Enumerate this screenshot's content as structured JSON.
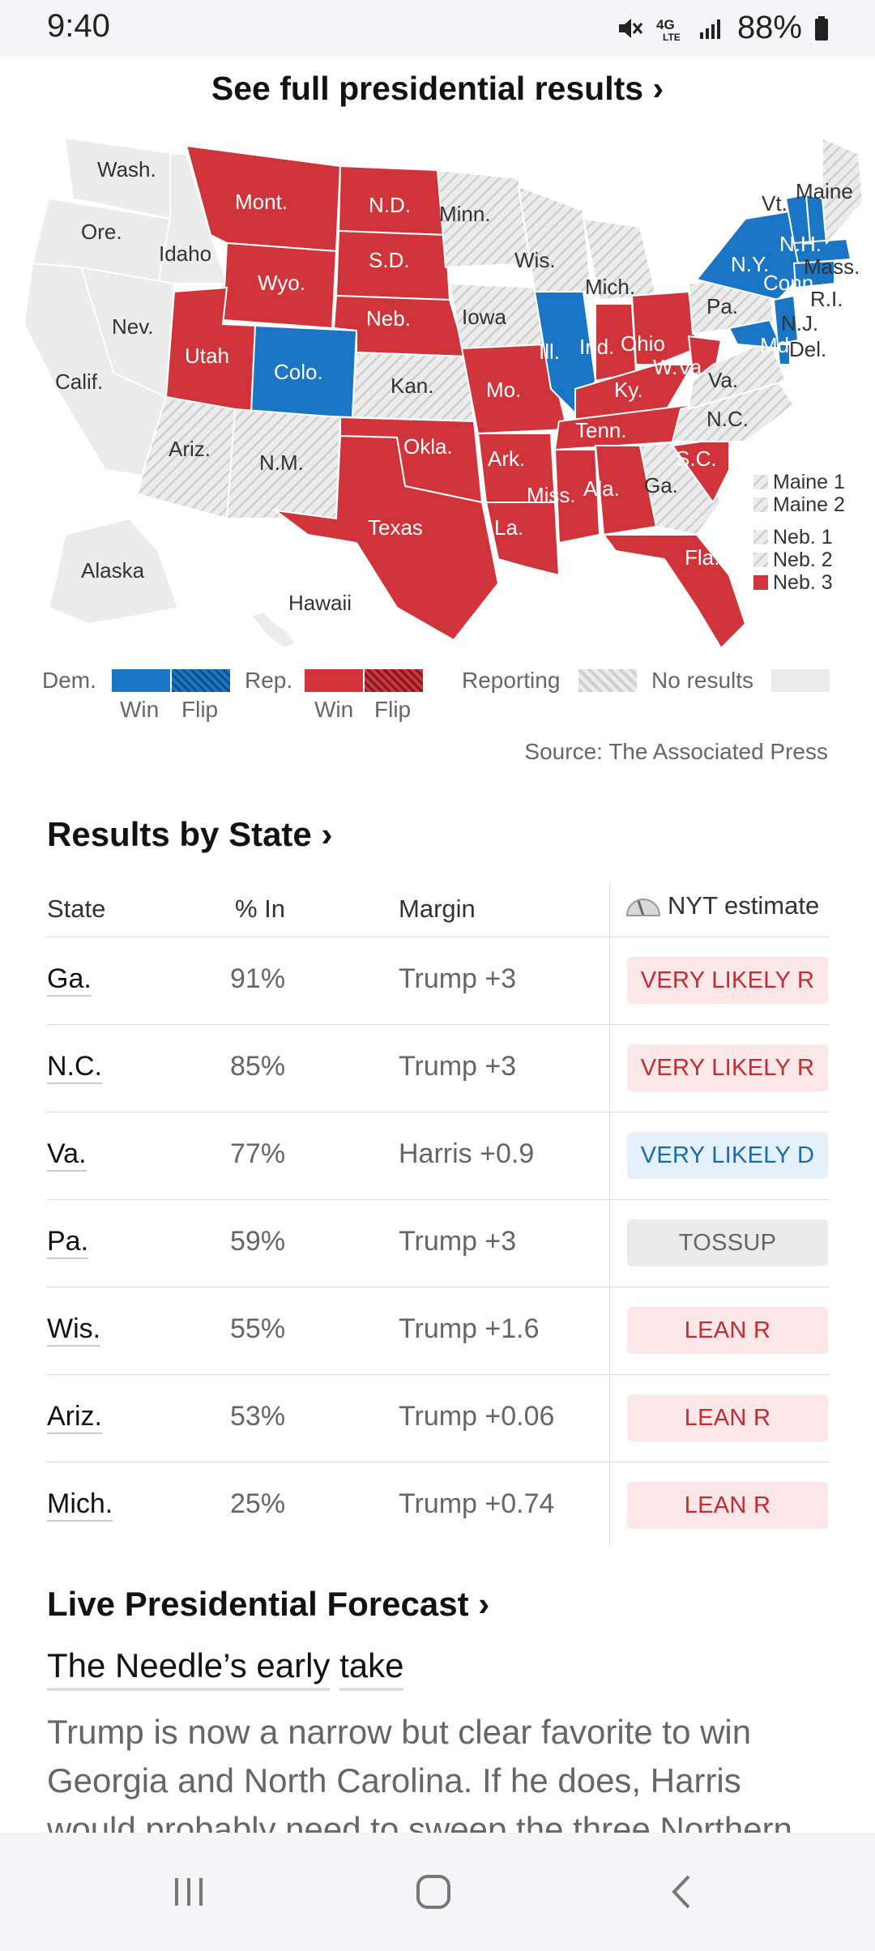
{
  "status": {
    "time": "9:40",
    "network": "4G LTE",
    "battery": "88%"
  },
  "map": {
    "header": "See full presidential results ›",
    "labels": {
      "wash": "Wash.",
      "ore": "Ore.",
      "idaho": "Idaho",
      "nev": "Nev.",
      "calif": "Calif.",
      "mont": "Mont.",
      "wyo": "Wyo.",
      "utah": "Utah",
      "colo": "Colo.",
      "ariz": "Ariz.",
      "nm": "N.M.",
      "nd": "N.D.",
      "sd": "S.D.",
      "neb": "Neb.",
      "kan": "Kan.",
      "okla": "Okla.",
      "texas": "Texas",
      "minn": "Minn.",
      "iowa": "Iowa",
      "mo": "Mo.",
      "ark": "Ark.",
      "la": "La.",
      "wis": "Wis.",
      "ill": "Ill.",
      "mich": "Mich.",
      "ind": "Ind.",
      "ohio": "Ohio",
      "ky": "Ky.",
      "tenn": "Tenn.",
      "miss": "Miss.",
      "ala": "Ala.",
      "ga": "Ga.",
      "fla": "Fla.",
      "sc": "S.C.",
      "nc": "N.C.",
      "va": "Va.",
      "wva": "W.Va.",
      "pa": "Pa.",
      "ny": "N.Y.",
      "vt": "Vt.",
      "maine": "Maine",
      "nh": "N.H.",
      "mass": "Mass.",
      "conn": "Conn.",
      "ri": "R.I.",
      "nj": "N.J.",
      "del": "Del.",
      "md": "Md.",
      "alaska": "Alaska",
      "hawaii": "Hawaii"
    },
    "district_legend": [
      "Maine 1",
      "Maine 2",
      "Neb. 1",
      "Neb. 2",
      "Neb. 3"
    ]
  },
  "legend": {
    "dem": "Dem.",
    "rep": "Rep.",
    "win": "Win",
    "flip": "Flip",
    "reporting": "Reporting",
    "no_results": "No results",
    "source": "Source: The Associated Press"
  },
  "results": {
    "title": "Results by State ›",
    "headers": {
      "state": "State",
      "pct": "% In",
      "margin": "Margin",
      "estimate": "NYT estimate"
    },
    "rows": [
      {
        "state": "Ga.",
        "pct": "91%",
        "margin": "Trump +3",
        "estimate": "VERY LIKELY R"
      },
      {
        "state": "N.C.",
        "pct": "85%",
        "margin": "Trump +3",
        "estimate": "VERY LIKELY R"
      },
      {
        "state": "Va.",
        "pct": "77%",
        "margin": "Harris +0.9",
        "estimate": "VERY LIKELY D"
      },
      {
        "state": "Pa.",
        "pct": "59%",
        "margin": "Trump +3",
        "estimate": "TOSSUP"
      },
      {
        "state": "Wis.",
        "pct": "55%",
        "margin": "Trump +1.6",
        "estimate": "LEAN R"
      },
      {
        "state": "Ariz.",
        "pct": "53%",
        "margin": "Trump +0.06",
        "estimate": "LEAN R"
      },
      {
        "state": "Mich.",
        "pct": "25%",
        "margin": "Trump +0.74",
        "estimate": "LEAN R"
      }
    ]
  },
  "forecast": {
    "title": "Live Presidential Forecast ›",
    "needle_title_1": "The Needle’s early",
    "needle_title_2": "take",
    "text": "Trump is now a narrow but clear favorite to win Georgia and North Carolina. If he does, Harris would probably need to sweep the three Northern"
  },
  "colors": {
    "rep": "#d0343a",
    "dem": "#1a75c4",
    "gray": "#e8e8e8",
    "hatch": "#d6d6d6"
  }
}
